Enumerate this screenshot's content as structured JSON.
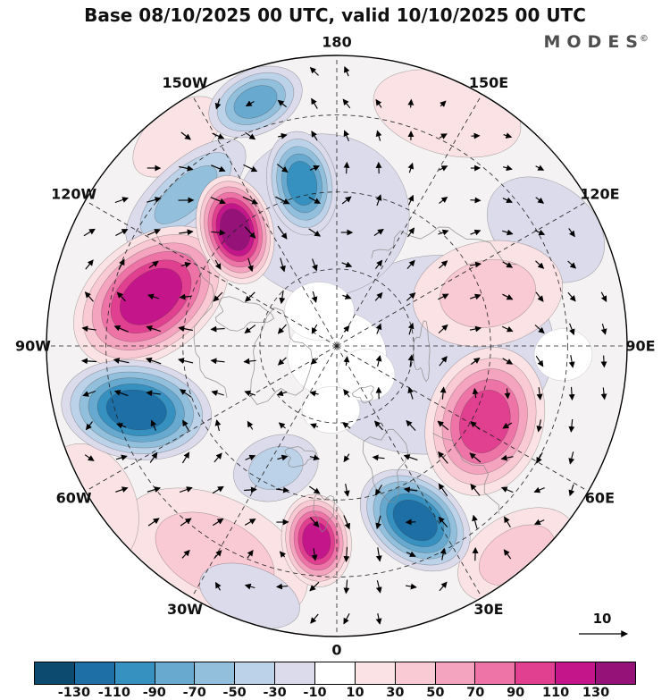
{
  "title": "Base 08/10/2025 00 UTC, valid 10/10/2025 00 UTC",
  "brand": {
    "name": "MODES",
    "mark": "©"
  },
  "chart_data": {
    "type": "heatmap",
    "subtype": "filled-contour anomaly field with wind vectors",
    "projection": "polar-stereographic-north",
    "title": "Base 08/10/2025 00 UTC, valid 10/10/2025 00 UTC",
    "base_color": "#f4f2f2",
    "longitude_labels": [
      {
        "label": "180",
        "lon": 180
      },
      {
        "label": "150W",
        "lon": -150
      },
      {
        "label": "150E",
        "lon": 150
      },
      {
        "label": "120W",
        "lon": -120
      },
      {
        "label": "120E",
        "lon": 120
      },
      {
        "label": "90W",
        "lon": -90
      },
      {
        "label": "90E",
        "lon": 90
      },
      {
        "label": "60W",
        "lon": -60
      },
      {
        "label": "60E",
        "lon": 60
      },
      {
        "label": "30W",
        "lon": -30
      },
      {
        "label": "30E",
        "lon": 30
      },
      {
        "label": "0",
        "lon": 0
      }
    ],
    "latitude_circles_r": [
      0.265,
      0.53,
      0.795
    ],
    "colorbar": {
      "orientation": "horizontal",
      "position": "bottom",
      "tick_labels": [
        "-130",
        "-110",
        "-90",
        "-70",
        "-50",
        "-30",
        "-10",
        "10",
        "30",
        "50",
        "70",
        "90",
        "110",
        "130"
      ],
      "colors": [
        "#0d4a6f",
        "#1d6fa5",
        "#3690c0",
        "#67a9cf",
        "#92bfdb",
        "#bcd2e8",
        "#dcdbeb",
        "#ffffff",
        "#fbe3e5",
        "#f9c9d4",
        "#f5a4c0",
        "#ee74a7",
        "#e0408f",
        "#c4168a",
        "#951379"
      ]
    },
    "reference_vector": {
      "label": "10",
      "value": 10
    },
    "anomaly_centers": [
      {
        "x": 0.33,
        "y": 0.03,
        "rx": 0.42,
        "ry": 0.34,
        "rot": -10,
        "sign": "neg",
        "levels": 1,
        "approx_value": -20
      },
      {
        "x": -0.05,
        "y": -0.45,
        "rx": 0.3,
        "ry": 0.28,
        "rot": 0,
        "sign": "neg",
        "levels": 1,
        "approx_value": -20
      },
      {
        "x": 0.72,
        "y": -0.4,
        "rx": 0.22,
        "ry": 0.16,
        "rot": 35,
        "sign": "neg",
        "levels": 1,
        "approx_value": -20
      },
      {
        "x": 0.38,
        "y": -0.8,
        "rx": 0.26,
        "ry": 0.14,
        "rot": 15,
        "sign": "pos",
        "levels": 1,
        "approx_value": 20
      },
      {
        "x": -0.42,
        "y": 0.72,
        "rx": 0.34,
        "ry": 0.2,
        "rot": 25,
        "sign": "pos",
        "levels": 2,
        "approx_value": 35
      },
      {
        "x": -0.85,
        "y": 0.55,
        "rx": 0.16,
        "ry": 0.22,
        "rot": -20,
        "sign": "pos",
        "levels": 1,
        "approx_value": 20
      },
      {
        "x": 0.62,
        "y": 0.72,
        "rx": 0.22,
        "ry": 0.14,
        "rot": -30,
        "sign": "pos",
        "levels": 2,
        "approx_value": 35
      },
      {
        "x": -0.55,
        "y": -0.72,
        "rx": 0.18,
        "ry": 0.1,
        "rot": -40,
        "sign": "pos",
        "levels": 1,
        "approx_value": 20
      },
      {
        "x": -0.3,
        "y": 0.86,
        "rx": 0.18,
        "ry": 0.1,
        "rot": 20,
        "sign": "neg",
        "levels": 1,
        "approx_value": -20
      },
      {
        "x": -0.21,
        "y": 0.42,
        "rx": 0.15,
        "ry": 0.11,
        "rot": -20,
        "sign": "neg",
        "levels": 2,
        "approx_value": -35
      },
      {
        "x": -0.52,
        "y": -0.52,
        "rx": 0.26,
        "ry": 0.11,
        "rot": -42,
        "sign": "neg",
        "levels": 3,
        "approx_value": -55
      },
      {
        "x": -0.28,
        "y": -0.84,
        "rx": 0.17,
        "ry": 0.11,
        "rot": -25,
        "sign": "neg",
        "levels": 4,
        "approx_value": -70
      },
      {
        "x": 0.52,
        "y": -0.18,
        "rx": 0.26,
        "ry": 0.18,
        "rot": -10,
        "sign": "pos",
        "levels": 2,
        "approx_value": 35
      },
      {
        "x": -0.64,
        "y": -0.17,
        "rx": 0.3,
        "ry": 0.2,
        "rot": -38,
        "sign": "pos",
        "levels": 6,
        "approx_value": 115
      },
      {
        "x": -0.35,
        "y": -0.4,
        "rx": 0.13,
        "ry": 0.19,
        "rot": -15,
        "sign": "pos",
        "levels": 7,
        "approx_value": 130
      },
      {
        "x": -0.12,
        "y": -0.56,
        "rx": 0.12,
        "ry": 0.18,
        "rot": -10,
        "sign": "neg",
        "levels": 5,
        "approx_value": -90
      },
      {
        "x": -0.69,
        "y": 0.22,
        "rx": 0.26,
        "ry": 0.17,
        "rot": 8,
        "sign": "neg",
        "levels": 6,
        "approx_value": -110
      },
      {
        "x": 0.51,
        "y": 0.26,
        "rx": 0.2,
        "ry": 0.26,
        "rot": 18,
        "sign": "pos",
        "levels": 5,
        "approx_value": 90
      },
      {
        "x": 0.27,
        "y": 0.6,
        "rx": 0.21,
        "ry": 0.15,
        "rot": 38,
        "sign": "neg",
        "levels": 6,
        "approx_value": -110
      },
      {
        "x": -0.07,
        "y": 0.67,
        "rx": 0.12,
        "ry": 0.16,
        "rot": -8,
        "sign": "pos",
        "levels": 6,
        "approx_value": 115
      }
    ],
    "white_regions": [
      {
        "x": 0.0,
        "y": 0.03,
        "rx": 0.17,
        "ry": 0.15
      },
      {
        "x": -0.06,
        "y": -0.12,
        "rx": 0.12,
        "ry": 0.1
      },
      {
        "x": 0.1,
        "y": 0.1,
        "rx": 0.1,
        "ry": 0.09
      },
      {
        "x": -0.02,
        "y": 0.22,
        "rx": 0.1,
        "ry": 0.08
      },
      {
        "x": 0.78,
        "y": 0.03,
        "rx": 0.1,
        "ry": 0.09
      }
    ]
  }
}
